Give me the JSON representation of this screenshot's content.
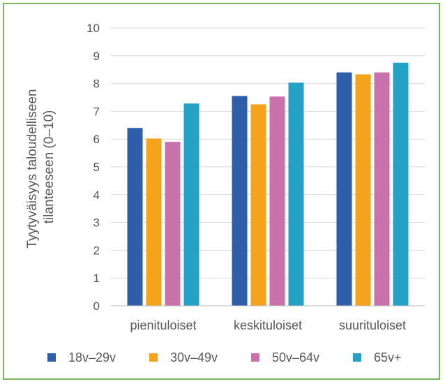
{
  "chart_data": {
    "type": "bar",
    "categories": [
      "pienituloiset",
      "keskituloiset",
      "suurituloiset"
    ],
    "series": [
      {
        "name": "18v–29v",
        "color": "#2e5eaa",
        "values": [
          6.4,
          7.55,
          8.4
        ]
      },
      {
        "name": "30v–49v",
        "color": "#f5a31a",
        "values": [
          6.02,
          7.25,
          8.33
        ]
      },
      {
        "name": "50v–64v",
        "color": "#c971ab",
        "values": [
          5.9,
          7.53,
          8.4
        ]
      },
      {
        "name": "65v+",
        "color": "#24a2c5",
        "values": [
          7.28,
          8.03,
          8.75
        ]
      }
    ],
    "ylabel_lines": [
      "Tyytyväisyys taloudelliseen",
      "tilanteeseen (0–10)"
    ],
    "ylim": [
      0,
      10
    ],
    "yticks": [
      0,
      1,
      2,
      3,
      4,
      5,
      6,
      7,
      8,
      9,
      10
    ],
    "grid": true,
    "legend_position": "bottom",
    "gridline_color": "#d9d9d9",
    "axis_color": "#bfbfbf"
  }
}
